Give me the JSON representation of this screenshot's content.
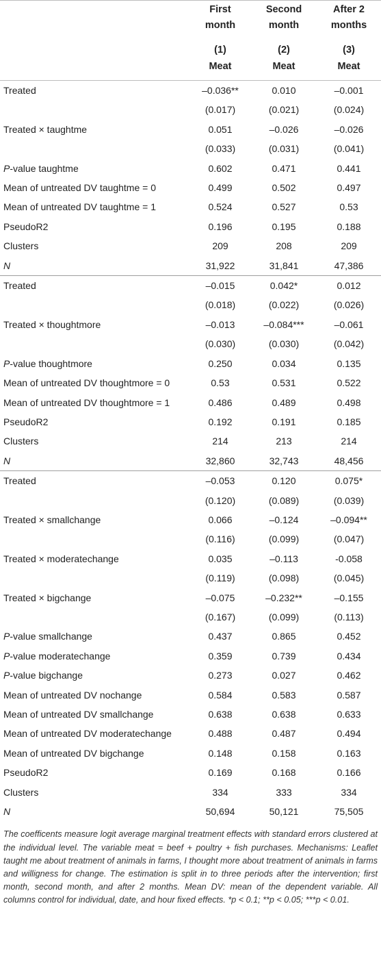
{
  "header": {
    "col1_line1": "First",
    "col1_line2": "month",
    "col2_line1": "Second",
    "col2_line2": "month",
    "col3_line1": "After 2",
    "col3_line2": "months",
    "num1": "(1)",
    "num2": "(2)",
    "num3": "(3)",
    "dv1": "Meat",
    "dv2": "Meat",
    "dv3": "Meat"
  },
  "panel1": [
    {
      "label": "Treated",
      "v1": "–0.036**",
      "v2": "0.010",
      "v3": "–0.001"
    },
    {
      "label": "",
      "v1": "(0.017)",
      "v2": "(0.021)",
      "v3": "(0.024)"
    },
    {
      "label": "Treated × taughtme",
      "v1": "0.051",
      "v2": "–0.026",
      "v3": "–0.026"
    },
    {
      "label": "",
      "v1": "(0.033)",
      "v2": "(0.031)",
      "v3": "(0.041)"
    },
    {
      "label": "P-value taughtme",
      "v1": "0.602",
      "v2": "0.471",
      "v3": "0.441"
    },
    {
      "label": "Mean of untreated DV taughtme = 0",
      "v1": "0.499",
      "v2": "0.502",
      "v3": "0.497"
    },
    {
      "label": "Mean of untreated DV taughtme = 1",
      "v1": "0.524",
      "v2": "0.527",
      "v3": "0.53"
    },
    {
      "label": "PseudoR2",
      "v1": "0.196",
      "v2": "0.195",
      "v3": "0.188"
    },
    {
      "label": "Clusters",
      "v1": "209",
      "v2": "208",
      "v3": "209"
    },
    {
      "label": "N",
      "v1": "31,922",
      "v2": "31,841",
      "v3": "47,386"
    }
  ],
  "panel2": [
    {
      "label": "Treated",
      "v1": "–0.015",
      "v2": "0.042*",
      "v3": "0.012"
    },
    {
      "label": "",
      "v1": "(0.018)",
      "v2": "(0.022)",
      "v3": "(0.026)"
    },
    {
      "label": "Treated × thoughtmore",
      "v1": "–0.013",
      "v2": "–0.084***",
      "v3": "–0.061"
    },
    {
      "label": "",
      "v1": "(0.030)",
      "v2": "(0.030)",
      "v3": "(0.042)"
    },
    {
      "label": "P-value thoughtmore",
      "v1": "0.250",
      "v2": "0.034",
      "v3": "0.135"
    },
    {
      "label": "Mean of untreated DV thoughtmore = 0",
      "v1": "0.53",
      "v2": "0.531",
      "v3": "0.522"
    },
    {
      "label": "Mean of untreated DV thoughtmore = 1",
      "v1": "0.486",
      "v2": "0.489",
      "v3": "0.498"
    },
    {
      "label": "PseudoR2",
      "v1": "0.192",
      "v2": "0.191",
      "v3": "0.185"
    },
    {
      "label": "Clusters",
      "v1": "214",
      "v2": "213",
      "v3": "214"
    },
    {
      "label": "N",
      "v1": "32,860",
      "v2": "32,743",
      "v3": "48,456"
    }
  ],
  "panel3": [
    {
      "label": "Treated",
      "v1": "–0.053",
      "v2": "0.120",
      "v3": "0.075*"
    },
    {
      "label": "",
      "v1": "(0.120)",
      "v2": "(0.089)",
      "v3": "(0.039)"
    },
    {
      "label": "Treated × smallchange",
      "v1": "0.066",
      "v2": "–0.124",
      "v3": "–0.094**"
    },
    {
      "label": "",
      "v1": "(0.116)",
      "v2": "(0.099)",
      "v3": "(0.047)"
    },
    {
      "label": "Treated × moderatechange",
      "v1": "0.035",
      "v2": "–0.113",
      "v3": "-0.058"
    },
    {
      "label": "",
      "v1": "(0.119)",
      "v2": "(0.098)",
      "v3": "(0.045)"
    },
    {
      "label": "Treated × bigchange",
      "v1": "–0.075",
      "v2": "–0.232**",
      "v3": "–0.155"
    },
    {
      "label": "",
      "v1": "(0.167)",
      "v2": "(0.099)",
      "v3": "(0.113)"
    },
    {
      "label": "P-value smallchange",
      "v1": "0.437",
      "v2": "0.865",
      "v3": "0.452"
    },
    {
      "label": "P-value moderatechange",
      "v1": "0.359",
      "v2": "0.739",
      "v3": "0.434"
    },
    {
      "label": "P-value bigchange",
      "v1": "0.273",
      "v2": "0.027",
      "v3": "0.462"
    },
    {
      "label": "Mean of untreated DV nochange",
      "v1": "0.584",
      "v2": "0.583",
      "v3": "0.587"
    },
    {
      "label": "Mean of untreated DV smallchange",
      "v1": "0.638",
      "v2": "0.638",
      "v3": "0.633"
    },
    {
      "label": "Mean of untreated DV moderatechange",
      "v1": "0.488",
      "v2": "0.487",
      "v3": "0.494"
    },
    {
      "label": "Mean of untreated DV bigchange",
      "v1": "0.148",
      "v2": "0.158",
      "v3": "0.163"
    },
    {
      "label": "PseudoR2",
      "v1": "0.169",
      "v2": "0.168",
      "v3": "0.166"
    },
    {
      "label": "Clusters",
      "v1": "334",
      "v2": "333",
      "v3": "334"
    },
    {
      "label": "N",
      "v1": "50,694",
      "v2": "50,121",
      "v3": "75,505"
    }
  ],
  "note": "The coefficents measure logit average marginal treatment effects with standard errors clustered at the individual level. The variable meat = beef + poultry + fish purchases. Mechanisms: Leaflet taught me about treatment of animals in farms, I thought more about treatment of animals in farms and willigness for change. The estimation is split in to three periods after the intervention; first month, second month, and after 2 months. Mean DV: mean of the dependent variable. All columns control for individual, date, and hour fixed effects. *p < 0.1; **p < 0.05; ***p < 0.01."
}
